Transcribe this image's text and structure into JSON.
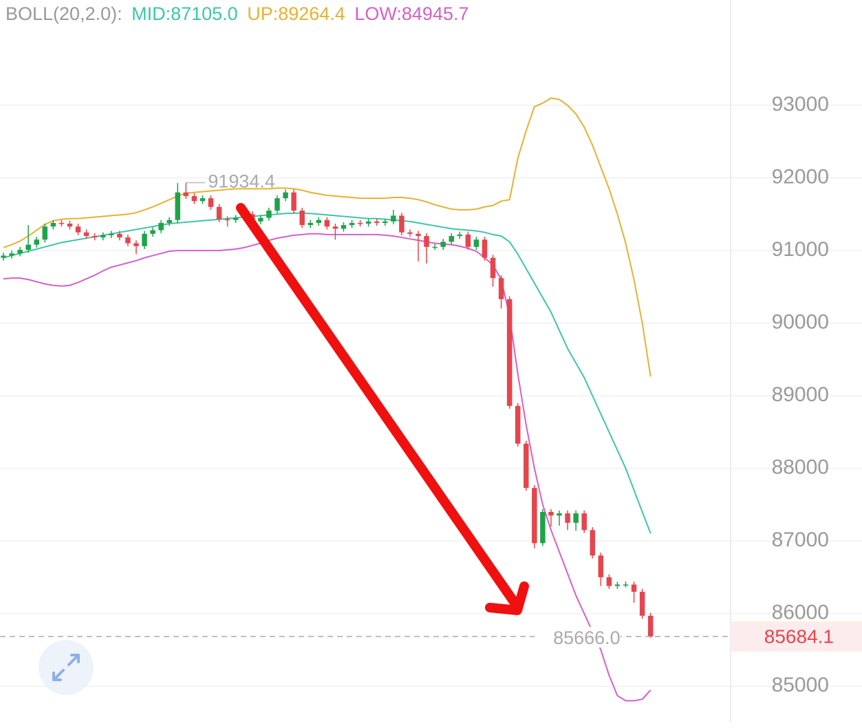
{
  "chart_data": {
    "type": "candlestick",
    "indicator": "BOLL(20,2.0):",
    "up_color": "#1fa34a",
    "down_color": "#e5454d",
    "ylim": [
      84500,
      94450
    ],
    "yticks": [
      85000,
      86000,
      87000,
      88000,
      89000,
      90000,
      91000,
      92000,
      93000
    ],
    "grid": true,
    "max_label": "91934.4",
    "min_label": "85666.0",
    "open": [
      90900,
      90930,
      90960,
      91010,
      91080,
      91150,
      91330,
      91380,
      91370,
      91330,
      91250,
      91200,
      91180,
      91210,
      91230,
      91180,
      91100,
      91060,
      91230,
      91280,
      91380,
      91420,
      91800,
      91750,
      91680,
      91720,
      91600,
      91430,
      91420,
      91450,
      91500,
      91400,
      91450,
      91550,
      91720,
      91800,
      91550,
      91350,
      91380,
      91420,
      91330,
      91300,
      91350,
      91380,
      91370,
      91400,
      91380,
      91400,
      91480,
      91250,
      91230,
      91200,
      91050,
      91050,
      91120,
      91200,
      91220,
      91050,
      91150,
      90900,
      90620,
      90330,
      88860,
      88340,
      87730,
      86970,
      87400,
      87350,
      87380,
      87250,
      87380,
      87150,
      86800,
      86500,
      86380,
      86400,
      86400,
      86300,
      85970
    ],
    "high": [
      90970,
      91000,
      91050,
      91350,
      91190,
      91370,
      91420,
      91420,
      91410,
      91370,
      91290,
      91240,
      91250,
      91270,
      91270,
      91220,
      91140,
      91270,
      91320,
      91420,
      91460,
      91930,
      91934.4,
      91790,
      91760,
      91760,
      91640,
      91470,
      91490,
      91540,
      91540,
      91490,
      91590,
      91760,
      91840,
      91840,
      91590,
      91420,
      91460,
      91460,
      91370,
      91390,
      91420,
      91420,
      91440,
      91440,
      91440,
      91560,
      91520,
      91290,
      91270,
      91240,
      91090,
      91160,
      91240,
      91260,
      91260,
      91190,
      91190,
      90940,
      90660,
      90370,
      88900,
      88380,
      87770,
      87440,
      87440,
      87420,
      87420,
      87420,
      87420,
      87190,
      86840,
      86540,
      86440,
      86440,
      86440,
      86340,
      86010
    ],
    "low": [
      90860,
      90890,
      90920,
      90970,
      91040,
      91110,
      91290,
      91330,
      91290,
      91210,
      91160,
      91140,
      91140,
      91170,
      91140,
      91060,
      90950,
      91020,
      91190,
      91240,
      91340,
      91380,
      91710,
      91640,
      91640,
      91560,
      91390,
      91330,
      91380,
      91410,
      91360,
      91360,
      91410,
      91510,
      91680,
      91510,
      91310,
      91310,
      91340,
      91290,
      91150,
      91260,
      91310,
      91330,
      91330,
      91340,
      91340,
      91360,
      91210,
      91190,
      90850,
      90820,
      91010,
      91010,
      91080,
      91160,
      91010,
      91010,
      90860,
      90500,
      90200,
      88820,
      88300,
      87690,
      86900,
      86930,
      87200,
      87210,
      87150,
      87140,
      87110,
      86760,
      86380,
      86340,
      86340,
      86360,
      86150,
      85930,
      85666.0
    ],
    "close": [
      90930,
      90960,
      91010,
      91080,
      91150,
      91330,
      91380,
      91370,
      91330,
      91250,
      91200,
      91180,
      91210,
      91230,
      91180,
      91100,
      91060,
      91230,
      91280,
      91380,
      91420,
      91800,
      91750,
      91680,
      91720,
      91600,
      91430,
      91420,
      91450,
      91500,
      91400,
      91450,
      91550,
      91720,
      91800,
      91550,
      91350,
      91380,
      91420,
      91330,
      91300,
      91350,
      91380,
      91370,
      91400,
      91380,
      91400,
      91480,
      91250,
      91230,
      91200,
      91050,
      91050,
      91120,
      91200,
      91220,
      91050,
      91150,
      90900,
      90620,
      90330,
      88860,
      88340,
      87730,
      86970,
      87400,
      87350,
      87380,
      87250,
      87380,
      87150,
      86800,
      86500,
      86380,
      86400,
      86400,
      86300,
      85970,
      85684.1
    ],
    "series": [
      {
        "name": "MID",
        "label": "MID:87105.0",
        "color": "#3cc6a9",
        "values": [
          90900,
          90930,
          90960,
          90990,
          91020,
          91050,
          91080,
          91110,
          91130,
          91150,
          91170,
          91190,
          91210,
          91230,
          91250,
          91270,
          91290,
          91310,
          91330,
          91350,
          91370,
          91380,
          91390,
          91400,
          91410,
          91420,
          91430,
          91440,
          91450,
          91460,
          91470,
          91480,
          91490,
          91500,
          91510,
          91515,
          91515,
          91510,
          91500,
          91490,
          91480,
          91470,
          91460,
          91450,
          91440,
          91440,
          91430,
          91420,
          91410,
          91400,
          91380,
          91360,
          91340,
          91320,
          91300,
          91290,
          91280,
          91270,
          91250,
          91220,
          91200,
          91120,
          90950,
          90750,
          90550,
          90350,
          90150,
          89900,
          89650,
          89450,
          89250,
          89000,
          88750,
          88500,
          88250,
          88000,
          87700,
          87400,
          87105.0
        ]
      },
      {
        "name": "UP",
        "label": "UP:89264.4",
        "color": "#e8b12e",
        "values": [
          91040,
          91080,
          91130,
          91200,
          91280,
          91360,
          91410,
          91430,
          91440,
          91440,
          91450,
          91460,
          91470,
          91480,
          91490,
          91500,
          91520,
          91560,
          91600,
          91650,
          91700,
          91750,
          91790,
          91800,
          91810,
          91820,
          91830,
          91840,
          91850,
          91850,
          91850,
          91850,
          91850,
          91860,
          91860,
          91850,
          91830,
          91800,
          91780,
          91760,
          91750,
          91740,
          91730,
          91720,
          91720,
          91720,
          91720,
          91730,
          91730,
          91720,
          91700,
          91670,
          91630,
          91600,
          91570,
          91560,
          91560,
          91570,
          91600,
          91620,
          91680,
          91700,
          92270,
          92650,
          92980,
          93030,
          93100,
          93080,
          93000,
          92880,
          92700,
          92450,
          92150,
          91850,
          91500,
          91100,
          90600,
          90000,
          89264.4
        ]
      },
      {
        "name": "LOW",
        "label": "LOW:84945.7",
        "color": "#d65fc9",
        "values": [
          90610,
          90620,
          90620,
          90600,
          90570,
          90540,
          90520,
          90510,
          90520,
          90560,
          90610,
          90660,
          90720,
          90770,
          90800,
          90830,
          90860,
          90900,
          90930,
          90960,
          90990,
          91000,
          91000,
          91000,
          91000,
          91000,
          91000,
          91010,
          91020,
          91040,
          91070,
          91100,
          91140,
          91170,
          91190,
          91210,
          91220,
          91230,
          91230,
          91220,
          91220,
          91220,
          91220,
          91220,
          91220,
          91220,
          91210,
          91200,
          91180,
          91160,
          91140,
          91120,
          91100,
          91090,
          91080,
          91060,
          91030,
          90990,
          90900,
          90800,
          90600,
          90100,
          89300,
          88600,
          88000,
          87500,
          87150,
          86850,
          86550,
          86250,
          86000,
          85750,
          85500,
          85150,
          84870,
          84800,
          84800,
          84820,
          84945.7
        ]
      }
    ]
  }
}
